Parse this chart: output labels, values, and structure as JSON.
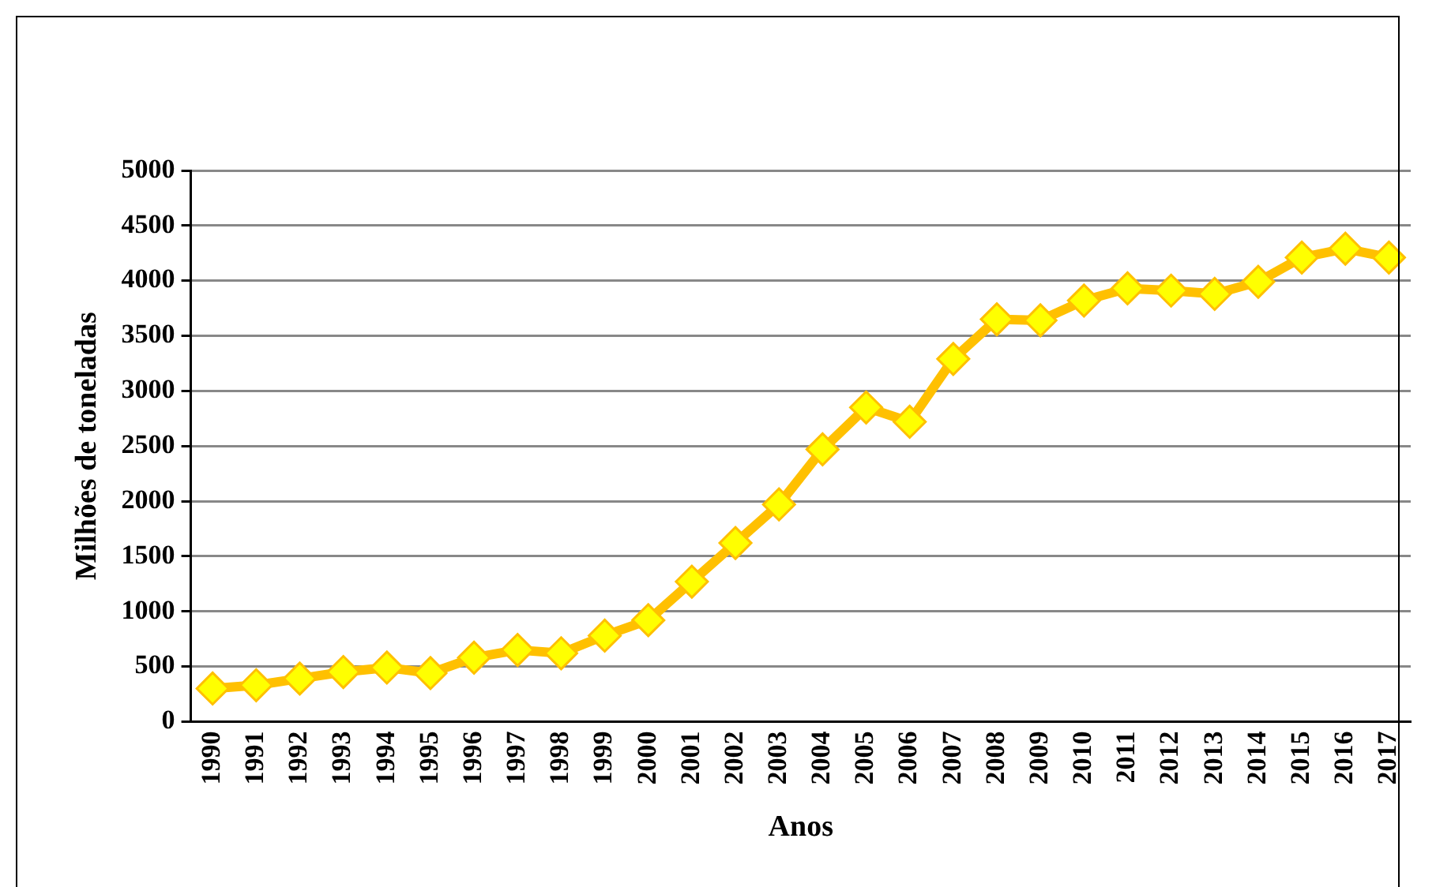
{
  "chart_data": {
    "type": "line",
    "xlabel": "Anos",
    "ylabel": "Milhões de toneladas",
    "categories": [
      "1990",
      "1991",
      "1992",
      "1993",
      "1994",
      "1995",
      "1996",
      "1997",
      "1998",
      "1999",
      "2000",
      "2001",
      "2002",
      "2003",
      "2004",
      "2005",
      "2006",
      "2007",
      "2008",
      "2009",
      "2010",
      "2011",
      "2012",
      "2013",
      "2014",
      "2015",
      "2016",
      "2017"
    ],
    "series": [
      {
        "color": "#ffc000",
        "values": [
          300,
          330,
          390,
          450,
          490,
          440,
          580,
          650,
          620,
          780,
          920,
          1270,
          1620,
          1970,
          2470,
          2850,
          2720,
          3290,
          3650,
          3640,
          3820,
          3930,
          3910,
          3880,
          3990,
          4210,
          4290,
          4210
        ]
      }
    ],
    "ylim": [
      0,
      5000
    ],
    "yticks": [
      0,
      500,
      1000,
      1500,
      2000,
      2500,
      3000,
      3500,
      4000,
      4500,
      5000
    ],
    "grid": "y",
    "marker": "diamond",
    "line_style": "solid",
    "legend": false
  }
}
